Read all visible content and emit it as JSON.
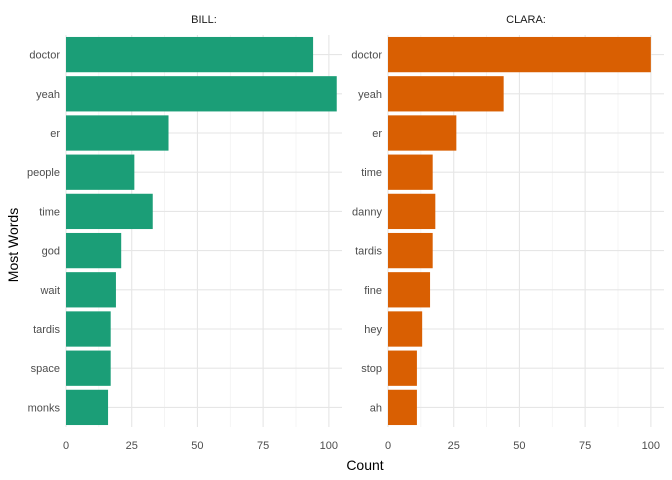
{
  "chart_data": {
    "type": "bar",
    "orientation": "horizontal",
    "xlabel": "Count",
    "ylabel": "Most Words",
    "grid": true,
    "legend": "none",
    "xlim": [
      0,
      105
    ],
    "x_ticks": [
      0,
      25,
      50,
      75,
      100
    ],
    "x_tick_labels": [
      "0",
      "25",
      "50",
      "75",
      "100"
    ],
    "panels": [
      {
        "title": "BILL:",
        "color": "#1b9e77",
        "categories": [
          "doctor",
          "yeah",
          "er",
          "people",
          "time",
          "god",
          "wait",
          "tardis",
          "space",
          "monks"
        ],
        "values": [
          94,
          103,
          39,
          26,
          33,
          21,
          19,
          17,
          17,
          16
        ]
      },
      {
        "title": "CLARA:",
        "color": "#d95f02",
        "categories": [
          "doctor",
          "yeah",
          "er",
          "time",
          "danny",
          "tardis",
          "fine",
          "hey",
          "stop",
          "ah"
        ],
        "values": [
          100,
          44,
          26,
          17,
          18,
          17,
          16,
          13,
          11,
          11
        ]
      }
    ]
  }
}
